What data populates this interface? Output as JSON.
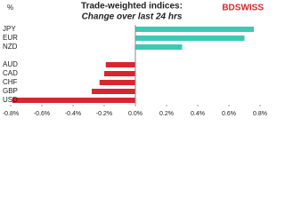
{
  "chart_data": {
    "type": "barh",
    "title": "Trade-weighted indices:",
    "subtitle": "Change over last 24 hrs",
    "y_label": "%",
    "logo": "BDSWISS",
    "categories": [
      "JPY",
      "EUR",
      "NZD",
      null,
      "AUD",
      "CAD",
      "CHF",
      "GBP",
      "USD"
    ],
    "values": [
      0.76,
      0.7,
      0.3,
      null,
      -0.19,
      -0.2,
      -0.23,
      -0.28,
      -0.79
    ],
    "colors": [
      "#3cc9b4",
      "#3cc9b4",
      "#3cc9b4",
      null,
      "#d9262e",
      "#d9262e",
      "#d9262e",
      "#d9262e",
      "#d9262e"
    ],
    "xlim": [
      -0.8,
      0.8
    ],
    "xticks": [
      {
        "value": -0.8,
        "label": "-0.8%"
      },
      {
        "value": -0.6,
        "label": "-0.6%"
      },
      {
        "value": -0.4,
        "label": "-0.4%"
      },
      {
        "value": -0.2,
        "label": "-0.2%"
      },
      {
        "value": 0,
        "label": "0.0%"
      },
      {
        "value": 0.2,
        "label": "0.2%"
      },
      {
        "value": 0.4,
        "label": "0.4%"
      },
      {
        "value": 0.6,
        "label": "0.6%"
      },
      {
        "value": 0.8,
        "label": "0.8%"
      }
    ]
  }
}
